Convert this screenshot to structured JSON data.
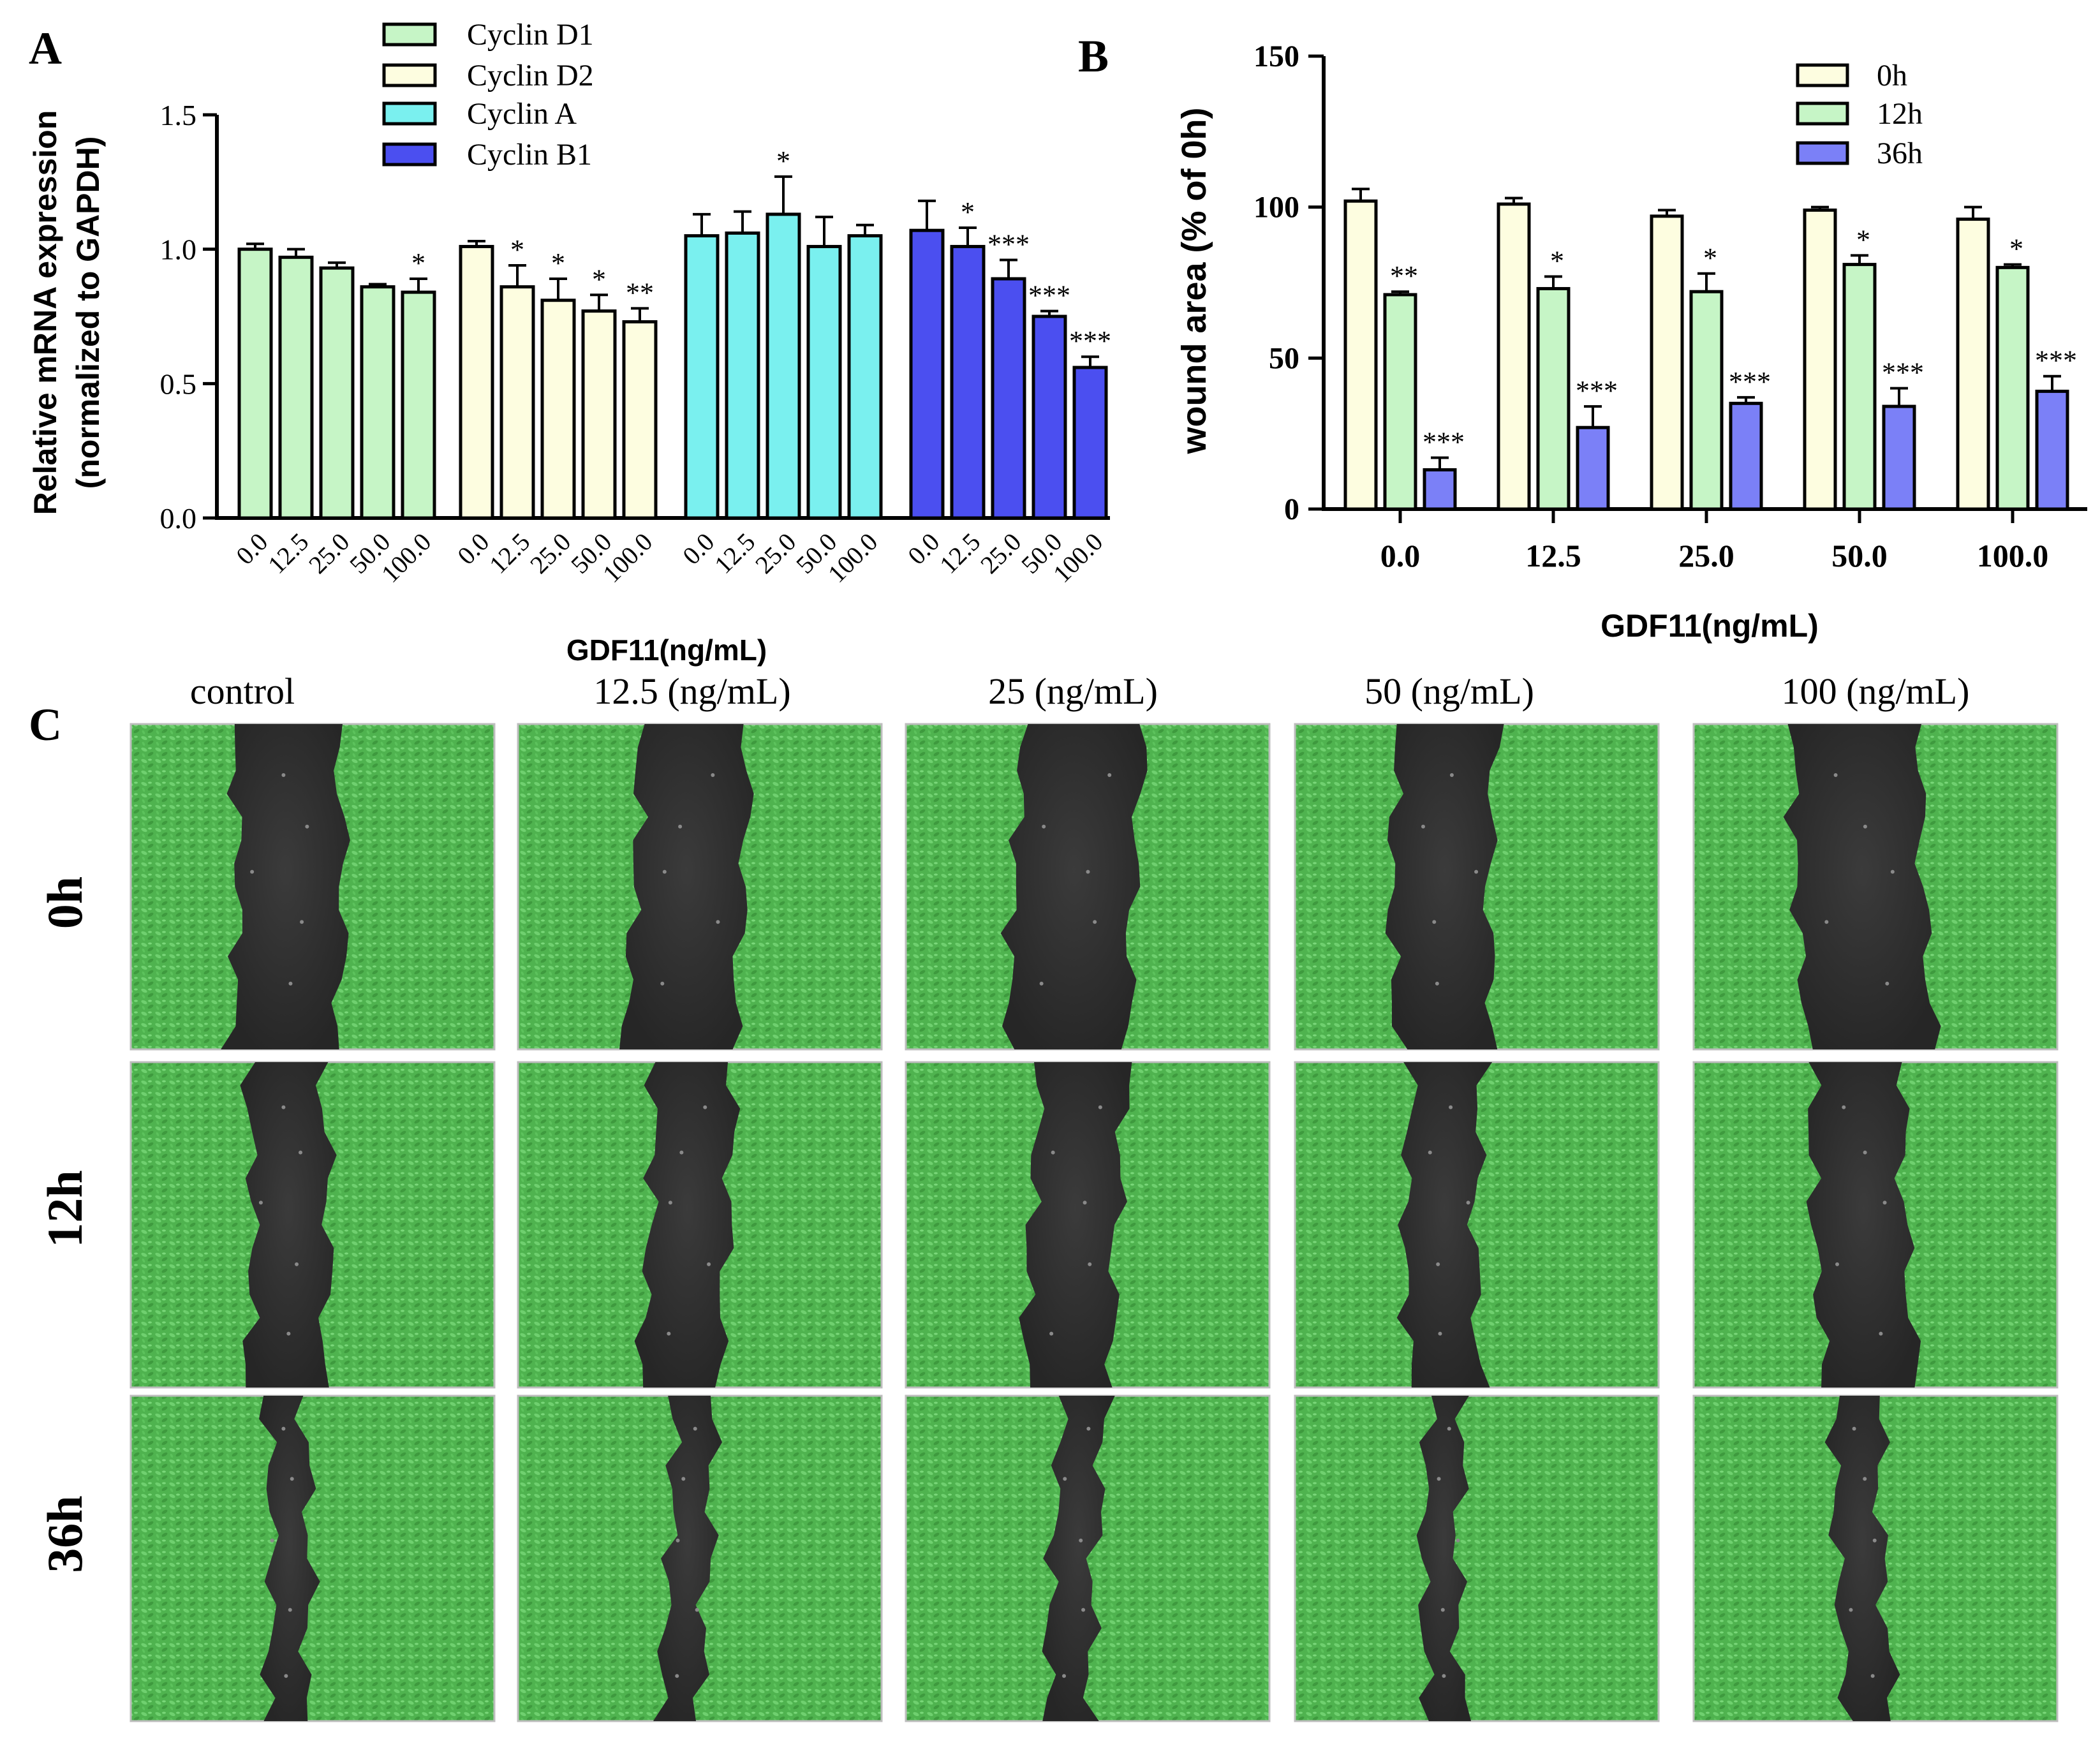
{
  "panel_labels": {
    "A": "A",
    "B": "B",
    "C": "C"
  },
  "colors": {
    "cyclin_d1": "#c6f5c6",
    "cyclin_d2": "#fdfde0",
    "cyclin_a": "#7af0ef",
    "cyclin_b1": "#4b4ff0",
    "h0": "#fdfde0",
    "h12": "#c6f5c6",
    "h36": "#7b80f7",
    "cell_green": "#4fb34f",
    "wound_dark": "#2f2f2f"
  },
  "chart_data": [
    {
      "id": "A",
      "type": "bar",
      "title": "",
      "ylabel_line1": "Relative mRNA expression",
      "ylabel_line2": "(normalized to GAPDH)",
      "xlabel": "GDF11(ng/mL)",
      "ylim": [
        0,
        1.5
      ],
      "yticks": [
        "0.0",
        "0.5",
        "1.0",
        "1.5"
      ],
      "ytick_values": [
        0,
        0.5,
        1.0,
        1.5
      ],
      "categories": [
        "0.0",
        "12.5",
        "25.0",
        "50.0",
        "100.0"
      ],
      "legend_position": "top",
      "series": [
        {
          "name": "Cyclin D1",
          "color_key": "cyclin_d1",
          "values": [
            1.0,
            0.97,
            0.93,
            0.86,
            0.84
          ],
          "errors": [
            0.02,
            0.03,
            0.02,
            0.01,
            0.05
          ],
          "sig": [
            "",
            "",
            "",
            "",
            "*"
          ]
        },
        {
          "name": "Cyclin D2",
          "color_key": "cyclin_d2",
          "values": [
            1.01,
            0.86,
            0.81,
            0.77,
            0.73
          ],
          "errors": [
            0.02,
            0.08,
            0.08,
            0.06,
            0.05
          ],
          "sig": [
            "",
            "*",
            "*",
            "*",
            "**"
          ]
        },
        {
          "name": "Cyclin A",
          "color_key": "cyclin_a",
          "values": [
            1.05,
            1.06,
            1.13,
            1.01,
            1.05
          ],
          "errors": [
            0.08,
            0.08,
            0.14,
            0.11,
            0.04
          ],
          "sig": [
            "",
            "",
            "*",
            "",
            ""
          ]
        },
        {
          "name": "Cyclin B1",
          "color_key": "cyclin_b1",
          "values": [
            1.07,
            1.01,
            0.89,
            0.75,
            0.56
          ],
          "errors": [
            0.11,
            0.07,
            0.07,
            0.02,
            0.04
          ],
          "sig": [
            "",
            "*",
            "***",
            "***",
            "***"
          ]
        }
      ]
    },
    {
      "id": "B",
      "type": "bar",
      "title": "",
      "ylabel": "wound area (% of 0h)",
      "xlabel": "GDF11(ng/mL)",
      "ylim": [
        0,
        150
      ],
      "yticks": [
        "0",
        "50",
        "100",
        "150"
      ],
      "ytick_values": [
        0,
        50,
        100,
        150
      ],
      "categories": [
        "0.0",
        "12.5",
        "25.0",
        "50.0",
        "100.0"
      ],
      "legend_position": "top-right",
      "series": [
        {
          "name": "0h",
          "color_key": "h0",
          "values": [
            102,
            101,
            97,
            99,
            96
          ],
          "errors": [
            4,
            2,
            2,
            1,
            4
          ],
          "sig": [
            "",
            "",
            "",
            "",
            ""
          ]
        },
        {
          "name": "12h",
          "color_key": "h12",
          "values": [
            71,
            73,
            72,
            81,
            80
          ],
          "errors": [
            1,
            4,
            6,
            3,
            1
          ],
          "sig": [
            "**",
            "*",
            "*",
            "*",
            "*"
          ]
        },
        {
          "name": "36h",
          "color_key": "h36",
          "values": [
            13,
            27,
            35,
            34,
            39
          ],
          "errors": [
            4,
            7,
            2,
            6,
            5
          ],
          "sig": [
            "***",
            "***",
            "***",
            "***",
            "***"
          ]
        }
      ]
    }
  ],
  "panel_c": {
    "column_labels": [
      "control",
      "12.5 (ng/mL)",
      "25 (ng/mL)",
      "50 (ng/mL)",
      "100 (ng/mL)"
    ],
    "row_labels": [
      "0h",
      "12h",
      "36h"
    ]
  }
}
